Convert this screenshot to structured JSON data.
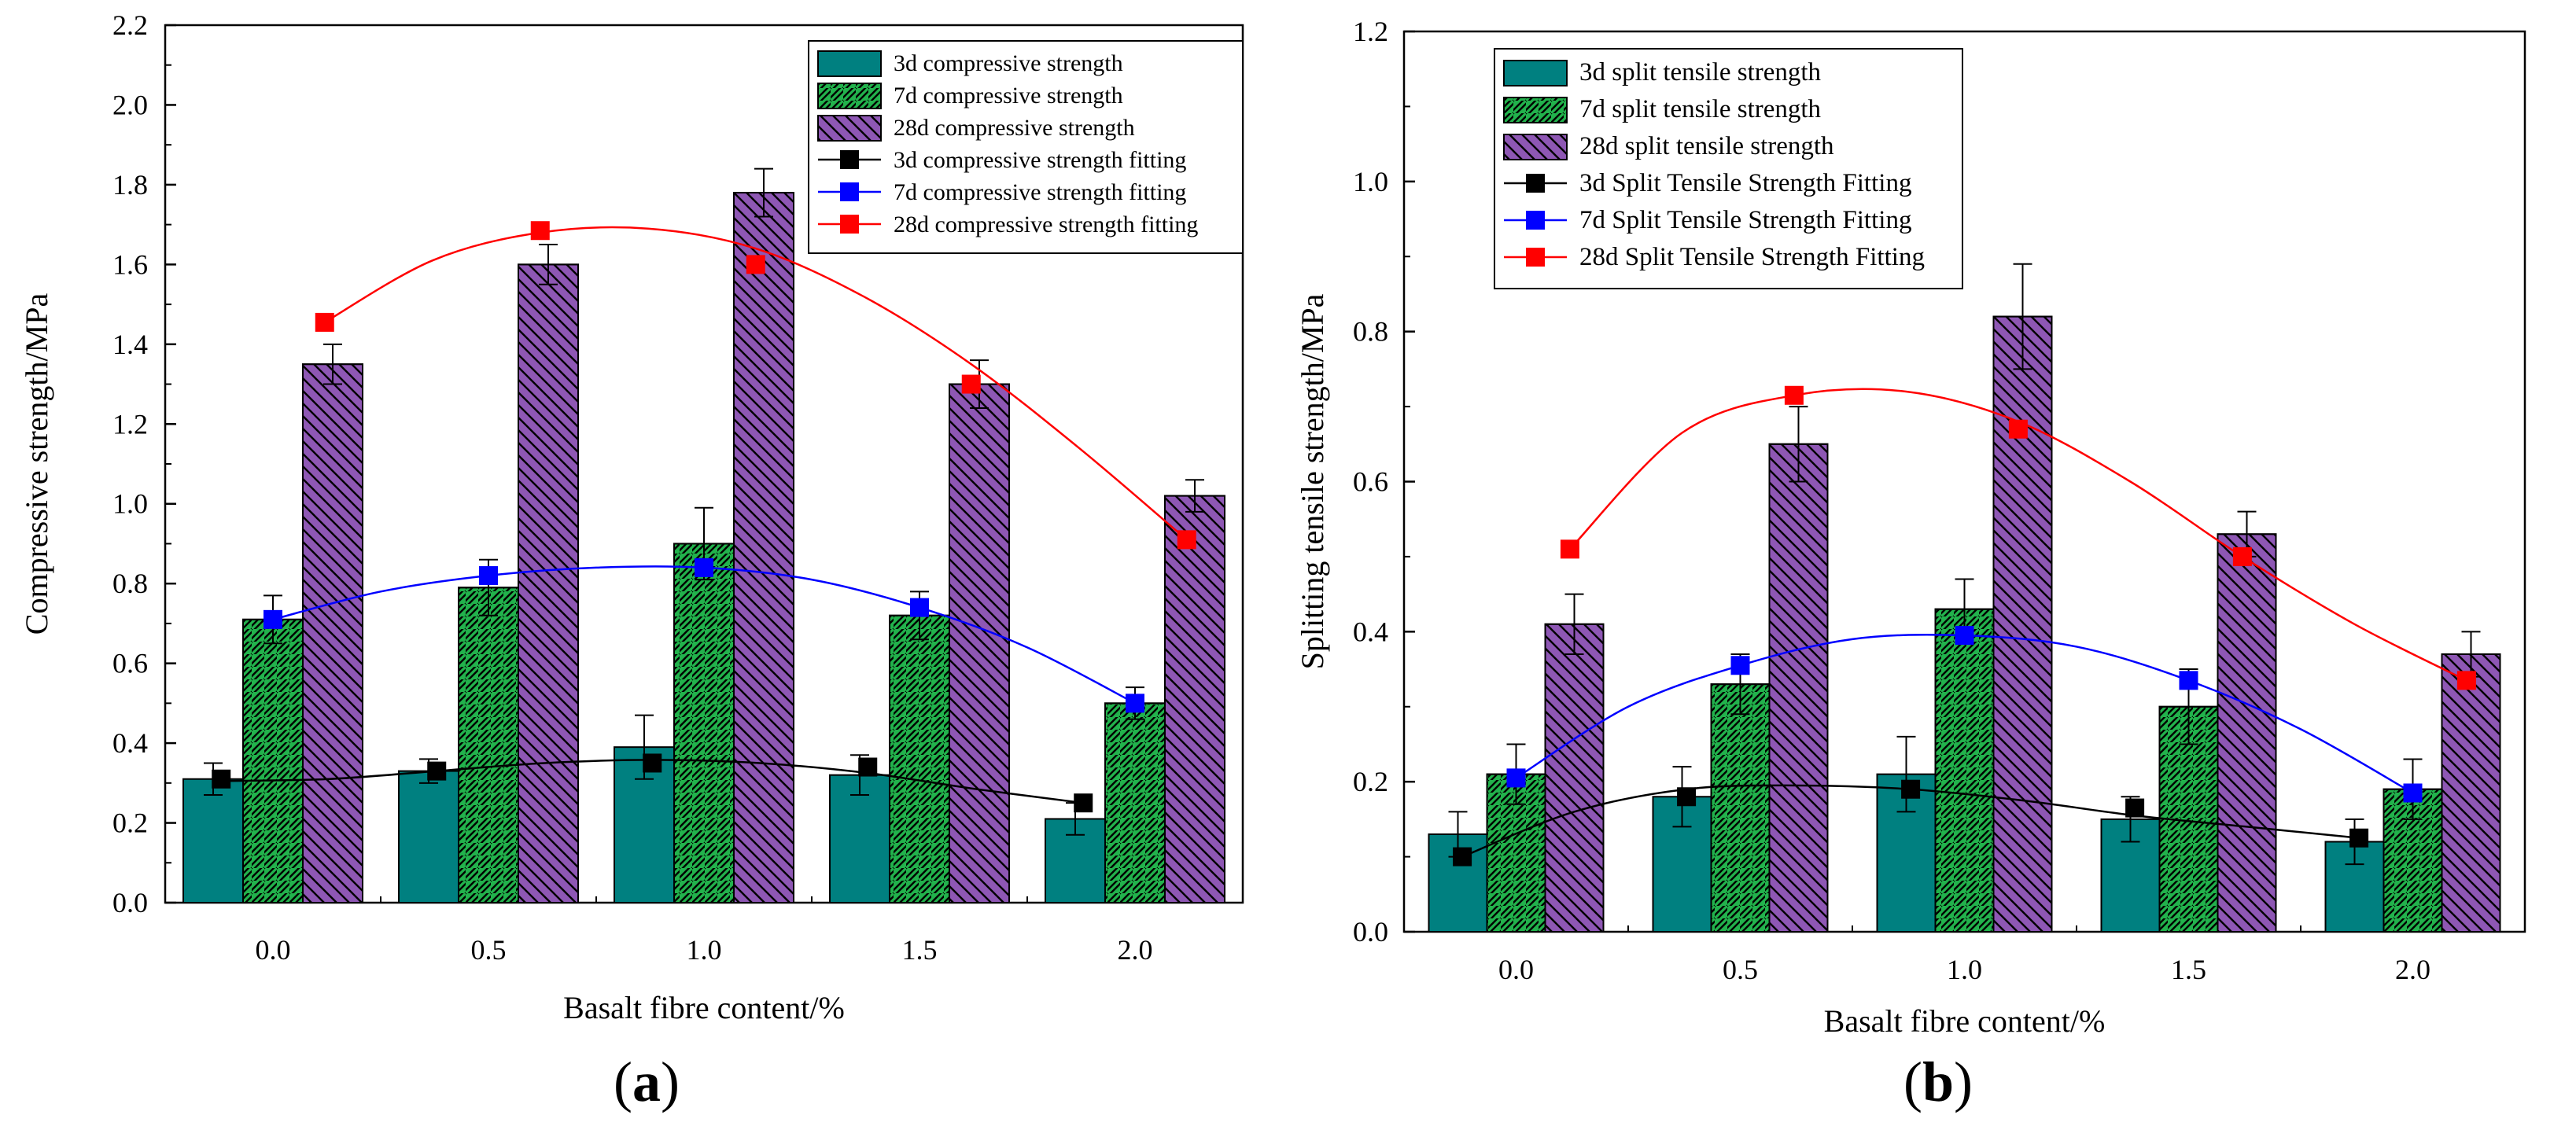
{
  "chart_data": [
    {
      "id": "a",
      "type": "bar",
      "panel_label_open": "(",
      "panel_label_letter": "a",
      "panel_label_close": ")",
      "xlabel": "Basalt fibre content/%",
      "ylabel": "Compressive strength/MPa",
      "categories": [
        "0.0",
        "0.5",
        "1.0",
        "1.5",
        "2.0"
      ],
      "ylim": [
        0,
        2.2
      ],
      "yticks": [
        "0.0",
        "0.2",
        "0.4",
        "0.6",
        "0.8",
        "1.0",
        "1.2",
        "1.4",
        "1.6",
        "1.8",
        "2.0",
        "2.2"
      ],
      "legend_position": "top-right",
      "bar_series": [
        {
          "name": "3d compressive strength",
          "color": "#008080",
          "pattern": "solid",
          "values": [
            0.31,
            0.33,
            0.39,
            0.32,
            0.21
          ],
          "errors": [
            0.04,
            0.03,
            0.08,
            0.05,
            0.04
          ]
        },
        {
          "name": "7d compressive strength",
          "color": "#22b24c",
          "pattern": "hatch-right",
          "values": [
            0.71,
            0.79,
            0.9,
            0.72,
            0.5
          ],
          "errors": [
            0.06,
            0.07,
            0.09,
            0.06,
            0.04
          ]
        },
        {
          "name": "28d compressive strength",
          "color": "#8e57b4",
          "pattern": "hatch-left",
          "values": [
            1.35,
            1.6,
            1.78,
            1.3,
            1.02
          ],
          "errors": [
            0.05,
            0.05,
            0.06,
            0.06,
            0.04
          ]
        }
      ],
      "fit_series": [
        {
          "name": "3d compressive strength fitting",
          "color": "#000000",
          "marker_color": "#000000",
          "x": [
            -0.12,
            0.38,
            0.88,
            1.38,
            1.88
          ],
          "y": [
            0.31,
            0.33,
            0.35,
            0.34,
            0.25
          ],
          "curve_y": [
            0.305,
            0.31,
            0.33,
            0.35,
            0.358,
            0.35,
            0.325,
            0.285,
            0.25
          ]
        },
        {
          "name": "7d compressive strength fitting",
          "color": "#0000ff",
          "marker_color": "#0000ff",
          "x": [
            0.0,
            0.5,
            1.0,
            1.5,
            2.0
          ],
          "y": [
            0.71,
            0.82,
            0.84,
            0.74,
            0.5
          ],
          "curve_y": [
            0.71,
            0.78,
            0.82,
            0.84,
            0.84,
            0.81,
            0.74,
            0.64,
            0.5
          ]
        },
        {
          "name": "28d compressive strength fitting",
          "color": "#ff0000",
          "marker_color": "#ff0000",
          "x": [
            0.12,
            0.62,
            1.12,
            1.62,
            2.12
          ],
          "y": [
            1.455,
            1.685,
            1.6,
            1.3,
            0.91
          ],
          "curve_y": [
            1.455,
            1.61,
            1.68,
            1.69,
            1.64,
            1.52,
            1.35,
            1.14,
            0.91
          ]
        }
      ]
    },
    {
      "id": "b",
      "type": "bar",
      "panel_label_open": "(",
      "panel_label_letter": "b",
      "panel_label_close": ")",
      "xlabel": "Basalt fibre content/%",
      "ylabel": "Splitting tensile strength/MPa",
      "categories": [
        "0.0",
        "0.5",
        "1.0",
        "1.5",
        "2.0"
      ],
      "ylim": [
        0,
        1.2
      ],
      "yticks": [
        "0.0",
        "0.2",
        "0.4",
        "0.6",
        "0.8",
        "1.0",
        "1.2"
      ],
      "legend_position": "top-left",
      "bar_series": [
        {
          "name": "3d split tensile strength",
          "color": "#008080",
          "pattern": "solid",
          "values": [
            0.13,
            0.18,
            0.21,
            0.15,
            0.12
          ],
          "errors": [
            0.03,
            0.04,
            0.05,
            0.03,
            0.03
          ]
        },
        {
          "name": "7d split tensile strength",
          "color": "#22b24c",
          "pattern": "hatch-right",
          "values": [
            0.21,
            0.33,
            0.43,
            0.3,
            0.19
          ],
          "errors": [
            0.04,
            0.04,
            0.04,
            0.05,
            0.04
          ]
        },
        {
          "name": "28d split tensile strength",
          "color": "#8e57b4",
          "pattern": "hatch-left",
          "values": [
            0.41,
            0.65,
            0.82,
            0.53,
            0.37
          ],
          "errors": [
            0.04,
            0.05,
            0.07,
            0.03,
            0.03
          ]
        }
      ],
      "fit_series": [
        {
          "name": "3d Split Tensile Strength Fitting",
          "color": "#000000",
          "marker_color": "#000000",
          "x": [
            -0.12,
            0.38,
            0.88,
            1.38,
            1.88
          ],
          "y": [
            0.1,
            0.18,
            0.19,
            0.165,
            0.125
          ],
          "curve_y": [
            0.1,
            0.16,
            0.19,
            0.195,
            0.19,
            0.175,
            0.155,
            0.14,
            0.125
          ]
        },
        {
          "name": "7d Split Tensile Strength Fitting",
          "color": "#0000ff",
          "marker_color": "#0000ff",
          "x": [
            0.0,
            0.5,
            1.0,
            1.5,
            2.0
          ],
          "y": [
            0.205,
            0.355,
            0.395,
            0.335,
            0.185
          ],
          "curve_y": [
            0.205,
            0.3,
            0.355,
            0.39,
            0.395,
            0.38,
            0.335,
            0.27,
            0.185
          ]
        },
        {
          "name": "28d Split Tensile Strength Fitting",
          "color": "#ff0000",
          "marker_color": "#ff0000",
          "x": [
            0.12,
            0.62,
            1.12,
            1.62,
            2.12
          ],
          "y": [
            0.51,
            0.715,
            0.67,
            0.5,
            0.335
          ],
          "curve_y": [
            0.51,
            0.665,
            0.715,
            0.72,
            0.68,
            0.6,
            0.5,
            0.41,
            0.335
          ]
        }
      ]
    }
  ]
}
